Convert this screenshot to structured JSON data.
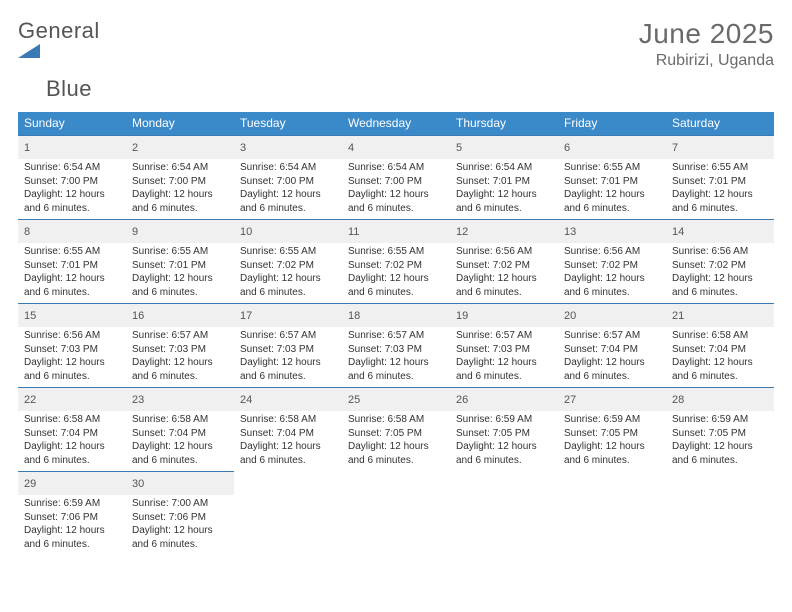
{
  "logo": {
    "word1": "General",
    "word2": "Blue"
  },
  "title": "June 2025",
  "location": "Rubirizi, Uganda",
  "colors": {
    "header_bar": "#3a89c9",
    "border": "#3a7ab5",
    "daynum_bg": "#f0f0f0",
    "text_muted": "#6a6a6a",
    "body_text": "#333333",
    "logo_blue": "#3a7ab5"
  },
  "weekdays": [
    "Sunday",
    "Monday",
    "Tuesday",
    "Wednesday",
    "Thursday",
    "Friday",
    "Saturday"
  ],
  "days": [
    {
      "n": 1,
      "sunrise": "6:54 AM",
      "sunset": "7:00 PM",
      "daylight": "12 hours and 6 minutes."
    },
    {
      "n": 2,
      "sunrise": "6:54 AM",
      "sunset": "7:00 PM",
      "daylight": "12 hours and 6 minutes."
    },
    {
      "n": 3,
      "sunrise": "6:54 AM",
      "sunset": "7:00 PM",
      "daylight": "12 hours and 6 minutes."
    },
    {
      "n": 4,
      "sunrise": "6:54 AM",
      "sunset": "7:00 PM",
      "daylight": "12 hours and 6 minutes."
    },
    {
      "n": 5,
      "sunrise": "6:54 AM",
      "sunset": "7:01 PM",
      "daylight": "12 hours and 6 minutes."
    },
    {
      "n": 6,
      "sunrise": "6:55 AM",
      "sunset": "7:01 PM",
      "daylight": "12 hours and 6 minutes."
    },
    {
      "n": 7,
      "sunrise": "6:55 AM",
      "sunset": "7:01 PM",
      "daylight": "12 hours and 6 minutes."
    },
    {
      "n": 8,
      "sunrise": "6:55 AM",
      "sunset": "7:01 PM",
      "daylight": "12 hours and 6 minutes."
    },
    {
      "n": 9,
      "sunrise": "6:55 AM",
      "sunset": "7:01 PM",
      "daylight": "12 hours and 6 minutes."
    },
    {
      "n": 10,
      "sunrise": "6:55 AM",
      "sunset": "7:02 PM",
      "daylight": "12 hours and 6 minutes."
    },
    {
      "n": 11,
      "sunrise": "6:55 AM",
      "sunset": "7:02 PM",
      "daylight": "12 hours and 6 minutes."
    },
    {
      "n": 12,
      "sunrise": "6:56 AM",
      "sunset": "7:02 PM",
      "daylight": "12 hours and 6 minutes."
    },
    {
      "n": 13,
      "sunrise": "6:56 AM",
      "sunset": "7:02 PM",
      "daylight": "12 hours and 6 minutes."
    },
    {
      "n": 14,
      "sunrise": "6:56 AM",
      "sunset": "7:02 PM",
      "daylight": "12 hours and 6 minutes."
    },
    {
      "n": 15,
      "sunrise": "6:56 AM",
      "sunset": "7:03 PM",
      "daylight": "12 hours and 6 minutes."
    },
    {
      "n": 16,
      "sunrise": "6:57 AM",
      "sunset": "7:03 PM",
      "daylight": "12 hours and 6 minutes."
    },
    {
      "n": 17,
      "sunrise": "6:57 AM",
      "sunset": "7:03 PM",
      "daylight": "12 hours and 6 minutes."
    },
    {
      "n": 18,
      "sunrise": "6:57 AM",
      "sunset": "7:03 PM",
      "daylight": "12 hours and 6 minutes."
    },
    {
      "n": 19,
      "sunrise": "6:57 AM",
      "sunset": "7:03 PM",
      "daylight": "12 hours and 6 minutes."
    },
    {
      "n": 20,
      "sunrise": "6:57 AM",
      "sunset": "7:04 PM",
      "daylight": "12 hours and 6 minutes."
    },
    {
      "n": 21,
      "sunrise": "6:58 AM",
      "sunset": "7:04 PM",
      "daylight": "12 hours and 6 minutes."
    },
    {
      "n": 22,
      "sunrise": "6:58 AM",
      "sunset": "7:04 PM",
      "daylight": "12 hours and 6 minutes."
    },
    {
      "n": 23,
      "sunrise": "6:58 AM",
      "sunset": "7:04 PM",
      "daylight": "12 hours and 6 minutes."
    },
    {
      "n": 24,
      "sunrise": "6:58 AM",
      "sunset": "7:04 PM",
      "daylight": "12 hours and 6 minutes."
    },
    {
      "n": 25,
      "sunrise": "6:58 AM",
      "sunset": "7:05 PM",
      "daylight": "12 hours and 6 minutes."
    },
    {
      "n": 26,
      "sunrise": "6:59 AM",
      "sunset": "7:05 PM",
      "daylight": "12 hours and 6 minutes."
    },
    {
      "n": 27,
      "sunrise": "6:59 AM",
      "sunset": "7:05 PM",
      "daylight": "12 hours and 6 minutes."
    },
    {
      "n": 28,
      "sunrise": "6:59 AM",
      "sunset": "7:05 PM",
      "daylight": "12 hours and 6 minutes."
    },
    {
      "n": 29,
      "sunrise": "6:59 AM",
      "sunset": "7:06 PM",
      "daylight": "12 hours and 6 minutes."
    },
    {
      "n": 30,
      "sunrise": "7:00 AM",
      "sunset": "7:06 PM",
      "daylight": "12 hours and 6 minutes."
    }
  ],
  "labels": {
    "sunrise": "Sunrise:",
    "sunset": "Sunset:",
    "daylight": "Daylight:"
  },
  "layout": {
    "first_weekday_index": 0,
    "trailing_empty": 5
  }
}
